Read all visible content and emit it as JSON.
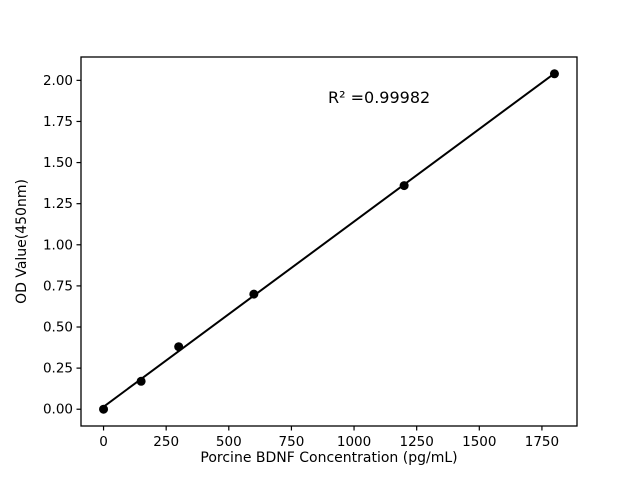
{
  "chart_data": {
    "type": "scatter",
    "title": "",
    "xlabel": "Porcine BDNF Concentration (pg/mL)",
    "ylabel": "OD Value(450nm)",
    "x_ticks": [
      0,
      250,
      500,
      750,
      1000,
      1250,
      1500,
      1750
    ],
    "y_ticks": [
      "0.00",
      "0.25",
      "0.50",
      "0.75",
      "1.00",
      "1.25",
      "1.50",
      "1.75",
      "2.00"
    ],
    "xlim": [
      -90,
      1890
    ],
    "ylim": [
      -0.102,
      2.142
    ],
    "grid": false,
    "legend": false,
    "points": {
      "name": "standard-curve-points",
      "x": [
        0,
        150,
        300,
        600,
        1200,
        1800
      ],
      "y": [
        0.0,
        0.17,
        0.38,
        0.7,
        1.36,
        2.04
      ]
    },
    "trendline": {
      "name": "linear-fit",
      "x": [
        0,
        1800
      ],
      "y": [
        0.015,
        2.042
      ]
    },
    "annotation": {
      "text": "R² =0.99982",
      "x": 1100,
      "y": 1.89
    },
    "colors": {
      "background": "#ffffff",
      "axis": "#000000",
      "point": "#000000",
      "line": "#000000",
      "text": "#000000"
    }
  }
}
